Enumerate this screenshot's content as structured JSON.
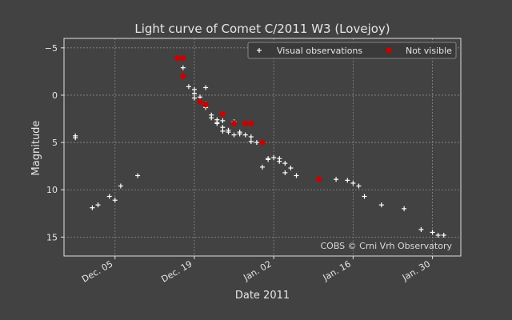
{
  "chart_data": {
    "type": "scatter",
    "title": "Light curve of Comet C/2011 W3 (Lovejoy)",
    "xlabel": "Date 2011",
    "ylabel": "Magnitude",
    "x_unit": "date",
    "xlim": [
      "2011-11-26",
      "2012-02-04"
    ],
    "ylim": [
      17,
      -6
    ],
    "y_inverted": true,
    "x_ticks": [
      {
        "date": "2011-12-05",
        "label": "Dec. 05"
      },
      {
        "date": "2011-12-19",
        "label": "Dec. 19"
      },
      {
        "date": "2012-01-02",
        "label": "Jan. 02"
      },
      {
        "date": "2012-01-16",
        "label": "Jan. 16"
      },
      {
        "date": "2012-01-30",
        "label": "Jan. 30"
      }
    ],
    "y_ticks": [
      -5,
      0,
      5,
      10,
      15
    ],
    "y_tick_labels": [
      "−5",
      "0",
      "5",
      "10",
      "15"
    ],
    "grid": true,
    "legend_position": "top-right",
    "annotation": "COBS © Crni Vrh Observatory",
    "colors": {
      "background": "#424242",
      "visual": "#ffffff",
      "not_visible": "#cc0000",
      "grid": "#8a8a8a"
    },
    "series": [
      {
        "name": "Visual observations",
        "marker": "plus",
        "points": [
          {
            "x": "2011-11-28",
            "y": 4.3
          },
          {
            "x": "2011-11-28",
            "y": 4.5
          },
          {
            "x": "2011-12-01",
            "y": 11.9
          },
          {
            "x": "2011-12-02",
            "y": 11.6
          },
          {
            "x": "2011-12-04",
            "y": 10.7
          },
          {
            "x": "2011-12-05",
            "y": 11.1
          },
          {
            "x": "2011-12-06",
            "y": 9.6
          },
          {
            "x": "2011-12-09",
            "y": 8.5
          },
          {
            "x": "2011-12-17",
            "y": -2.9
          },
          {
            "x": "2011-12-18",
            "y": -0.9
          },
          {
            "x": "2011-12-19",
            "y": -0.6
          },
          {
            "x": "2011-12-19",
            "y": -0.2
          },
          {
            "x": "2011-12-19",
            "y": 0.3
          },
          {
            "x": "2011-12-20",
            "y": 0.2
          },
          {
            "x": "2011-12-20",
            "y": 0.7
          },
          {
            "x": "2011-12-21",
            "y": 0.9
          },
          {
            "x": "2011-12-21",
            "y": 1.3
          },
          {
            "x": "2011-12-21",
            "y": -0.8
          },
          {
            "x": "2011-12-22",
            "y": 2.1
          },
          {
            "x": "2011-12-22",
            "y": 2.4
          },
          {
            "x": "2011-12-23",
            "y": 2.6
          },
          {
            "x": "2011-12-23",
            "y": 2.9
          },
          {
            "x": "2011-12-23",
            "y": 3.0
          },
          {
            "x": "2011-12-24",
            "y": 2.7
          },
          {
            "x": "2011-12-24",
            "y": 3.8
          },
          {
            "x": "2011-12-24",
            "y": 3.4
          },
          {
            "x": "2011-12-25",
            "y": 3.7
          },
          {
            "x": "2011-12-25",
            "y": 3.9
          },
          {
            "x": "2011-12-26",
            "y": 2.8
          },
          {
            "x": "2011-12-26",
            "y": 4.2
          },
          {
            "x": "2011-12-27",
            "y": 4.1
          },
          {
            "x": "2011-12-27",
            "y": 3.9
          },
          {
            "x": "2011-12-28",
            "y": 4.2
          },
          {
            "x": "2011-12-29",
            "y": 4.4
          },
          {
            "x": "2011-12-29",
            "y": 4.9
          },
          {
            "x": "2011-12-30",
            "y": 5.0
          },
          {
            "x": "2011-12-31",
            "y": 7.6
          },
          {
            "x": "2012-01-01",
            "y": 6.7
          },
          {
            "x": "2012-01-01",
            "y": 6.8
          },
          {
            "x": "2012-01-02",
            "y": 6.6
          },
          {
            "x": "2012-01-03",
            "y": 7.0
          },
          {
            "x": "2012-01-03",
            "y": 6.7
          },
          {
            "x": "2012-01-04",
            "y": 7.2
          },
          {
            "x": "2012-01-04",
            "y": 8.2
          },
          {
            "x": "2012-01-05",
            "y": 7.7
          },
          {
            "x": "2012-01-06",
            "y": 8.5
          },
          {
            "x": "2012-01-13",
            "y": 8.9
          },
          {
            "x": "2012-01-15",
            "y": 9.0
          },
          {
            "x": "2012-01-16",
            "y": 9.3
          },
          {
            "x": "2012-01-17",
            "y": 9.6
          },
          {
            "x": "2012-01-18",
            "y": 10.7
          },
          {
            "x": "2012-01-21",
            "y": 11.6
          },
          {
            "x": "2012-01-25",
            "y": 12.0
          },
          {
            "x": "2012-01-28",
            "y": 14.2
          },
          {
            "x": "2012-01-30",
            "y": 14.5
          },
          {
            "x": "2012-01-31",
            "y": 14.8
          },
          {
            "x": "2012-02-01",
            "y": 14.8
          }
        ]
      },
      {
        "name": "Not visible",
        "marker": "plus",
        "points": [
          {
            "x": "2011-12-16",
            "y": -3.9
          },
          {
            "x": "2011-12-17",
            "y": -3.9
          },
          {
            "x": "2011-12-17",
            "y": -2.0
          },
          {
            "x": "2011-12-20",
            "y": 0.7
          },
          {
            "x": "2011-12-21",
            "y": 1.0
          },
          {
            "x": "2011-12-24",
            "y": 2.0
          },
          {
            "x": "2011-12-26",
            "y": 3.0
          },
          {
            "x": "2011-12-28",
            "y": 3.0
          },
          {
            "x": "2011-12-29",
            "y": 3.0
          },
          {
            "x": "2011-12-31",
            "y": 5.0
          },
          {
            "x": "2012-01-10",
            "y": 8.9
          }
        ]
      }
    ]
  }
}
